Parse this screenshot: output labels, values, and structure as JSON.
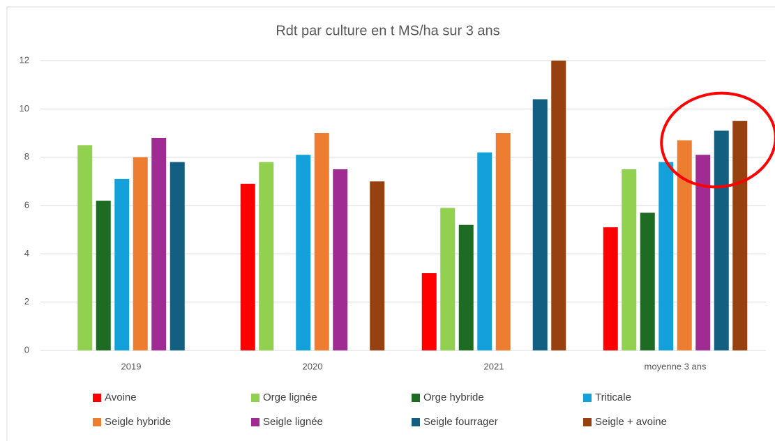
{
  "chart_data": {
    "type": "bar",
    "title": "Rdt par culture en t MS/ha sur 3 ans",
    "categories": [
      "2019",
      "2020",
      "2021",
      "moyenne 3 ans"
    ],
    "series": [
      {
        "name": "Avoine",
        "color": "#ff0000",
        "values": [
          null,
          6.9,
          3.2,
          5.1
        ]
      },
      {
        "name": "Orge lignée",
        "color": "#92d050",
        "values": [
          8.5,
          7.8,
          5.9,
          7.5
        ]
      },
      {
        "name": "Orge hybride",
        "color": "#1e6b24",
        "values": [
          6.2,
          null,
          5.2,
          5.7
        ]
      },
      {
        "name": "Triticale",
        "color": "#14a0db",
        "values": [
          7.1,
          8.1,
          8.2,
          7.8
        ]
      },
      {
        "name": "Seigle hybride",
        "color": "#ed7d31",
        "values": [
          8.0,
          9.0,
          9.0,
          8.7
        ]
      },
      {
        "name": "Seigle lignée",
        "color": "#a02b93",
        "values": [
          8.8,
          7.5,
          null,
          8.1
        ]
      },
      {
        "name": "Seigle fourrager",
        "color": "#135f82",
        "values": [
          7.8,
          null,
          10.4,
          9.1
        ]
      },
      {
        "name": "Seigle + avoine",
        "color": "#974010",
        "values": [
          null,
          7.0,
          12.0,
          9.5
        ]
      }
    ],
    "ylim": [
      0,
      12
    ],
    "yticks": [
      0,
      2,
      4,
      6,
      8,
      10,
      12
    ],
    "grid": true
  }
}
